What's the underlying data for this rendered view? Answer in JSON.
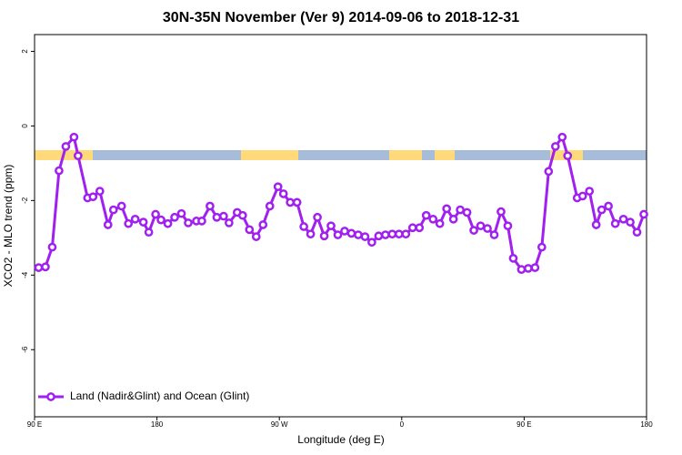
{
  "chart_data": {
    "type": "line",
    "title": "30N-35N November (Ver 9)   2014-09-06 to 2018-12-31",
    "x_label": "Longitude (deg E)",
    "y_label": "XCO2 - MLO trend (ppm)",
    "xlim": [
      90,
      540
    ],
    "xticks": [
      {
        "value": 90,
        "label": "90 E"
      },
      {
        "value": 180,
        "label": "180"
      },
      {
        "value": 270,
        "label": "90 W"
      },
      {
        "value": 360,
        "label": "0"
      },
      {
        "value": 450,
        "label": "90 E"
      },
      {
        "value": 540,
        "label": "180"
      }
    ],
    "ylim": [
      -7.8,
      2.45
    ],
    "yticks": [
      -6,
      -4,
      -2,
      0,
      2
    ],
    "legend": "bottomleft",
    "x": [
      93,
      98,
      103,
      108,
      113,
      119,
      122,
      129,
      133,
      138,
      144,
      148,
      154,
      159,
      164,
      170,
      174,
      179,
      183,
      188,
      193,
      198,
      203,
      209,
      213,
      219,
      224,
      229,
      233,
      239,
      243,
      248,
      253,
      258,
      263,
      269,
      273,
      278,
      283,
      288,
      293,
      298,
      303,
      308,
      313,
      318,
      323,
      328,
      333,
      338,
      343,
      348,
      353,
      358,
      363,
      368,
      373,
      378,
      383,
      388,
      393,
      398,
      403,
      408,
      413,
      418,
      423,
      428,
      433,
      438,
      442,
      448,
      453,
      458,
      463,
      468,
      473,
      478,
      482,
      489,
      493,
      498,
      503,
      507,
      512,
      517,
      523,
      528,
      533,
      538
    ],
    "series": [
      {
        "name": "Land (Nadir&Glint) and Ocean (Glint)",
        "color": "#a020f0",
        "values": [
          -3.8,
          -3.78,
          -3.25,
          -1.2,
          -0.55,
          -0.3,
          -0.8,
          -1.93,
          -1.9,
          -1.75,
          -2.65,
          -2.25,
          -2.15,
          -2.62,
          -2.5,
          -2.58,
          -2.85,
          -2.37,
          -2.52,
          -2.62,
          -2.45,
          -2.35,
          -2.6,
          -2.55,
          -2.55,
          -2.15,
          -2.45,
          -2.42,
          -2.6,
          -2.32,
          -2.4,
          -2.78,
          -2.97,
          -2.65,
          -2.15,
          -1.63,
          -1.82,
          -2.05,
          -2.05,
          -2.7,
          -2.9,
          -2.45,
          -2.95,
          -2.68,
          -2.92,
          -2.82,
          -2.88,
          -2.92,
          -2.97,
          -3.12,
          -2.95,
          -2.92,
          -2.9,
          -2.9,
          -2.9,
          -2.73,
          -2.73,
          -2.4,
          -2.5,
          -2.62,
          -2.22,
          -2.5,
          -2.25,
          -2.32,
          -2.8,
          -2.68,
          -2.75,
          -2.92,
          -2.3,
          -2.68,
          -3.55,
          -3.85,
          -3.82,
          -3.8,
          -3.25,
          -1.22,
          -0.55,
          -0.3,
          -0.8,
          -1.93,
          -1.88,
          -1.75,
          -2.65,
          -2.25,
          -2.15,
          -2.62,
          -2.5,
          -2.58,
          -2.85,
          -2.37
        ]
      }
    ]
  }
}
